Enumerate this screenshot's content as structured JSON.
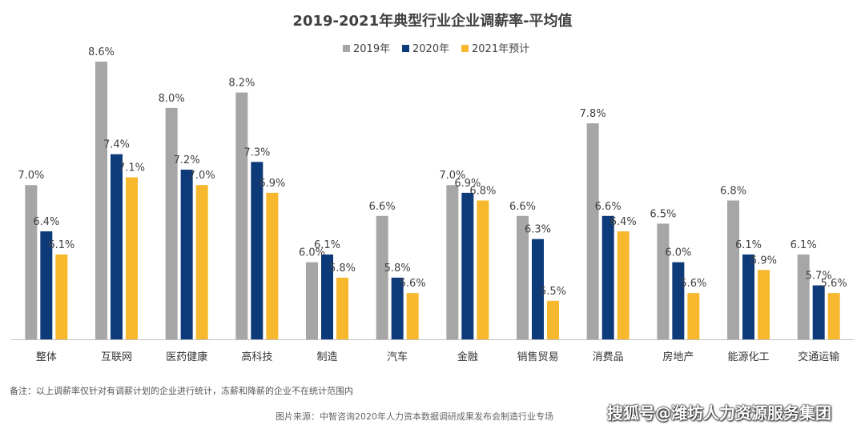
{
  "chart_data": {
    "type": "bar",
    "title": "2019-2021年典型行业企业调薪率-平均值",
    "categories": [
      "整体",
      "互联网",
      "医药健康",
      "高科技",
      "制造",
      "汽车",
      "金融",
      "销售贸易",
      "消费品",
      "房地产",
      "能源化工",
      "交通运输"
    ],
    "series": [
      {
        "name": "2019年",
        "color": "#a6a6a6",
        "values": [
          7.0,
          8.6,
          8.0,
          8.2,
          6.0,
          6.6,
          7.0,
          6.6,
          7.8,
          6.5,
          6.8,
          6.1
        ]
      },
      {
        "name": "2020年",
        "color": "#0d3b7a",
        "values": [
          6.4,
          7.4,
          7.2,
          7.3,
          6.1,
          5.8,
          6.9,
          6.3,
          6.6,
          6.0,
          6.1,
          5.7
        ]
      },
      {
        "name": "2021年预计",
        "color": "#f7b82e",
        "values": [
          6.1,
          7.1,
          7.0,
          6.9,
          5.8,
          5.6,
          6.8,
          5.5,
          6.4,
          5.6,
          5.9,
          5.6
        ]
      }
    ],
    "ylim": [
      5.0,
      8.6
    ],
    "value_suffix": "%",
    "legend_position": "top-center",
    "grid": false,
    "xlabel": "",
    "ylabel": ""
  },
  "footer": {
    "note": "备注：以上调薪率仅针对有调薪计划的企业进行统计，冻薪和降薪的企业不在统计范围内",
    "source": "图片来源：中智咨询2020年人力资本数据调研成果发布会制造行业专场",
    "watermark": "搜狐号@潍坊人力资源服务集团"
  }
}
